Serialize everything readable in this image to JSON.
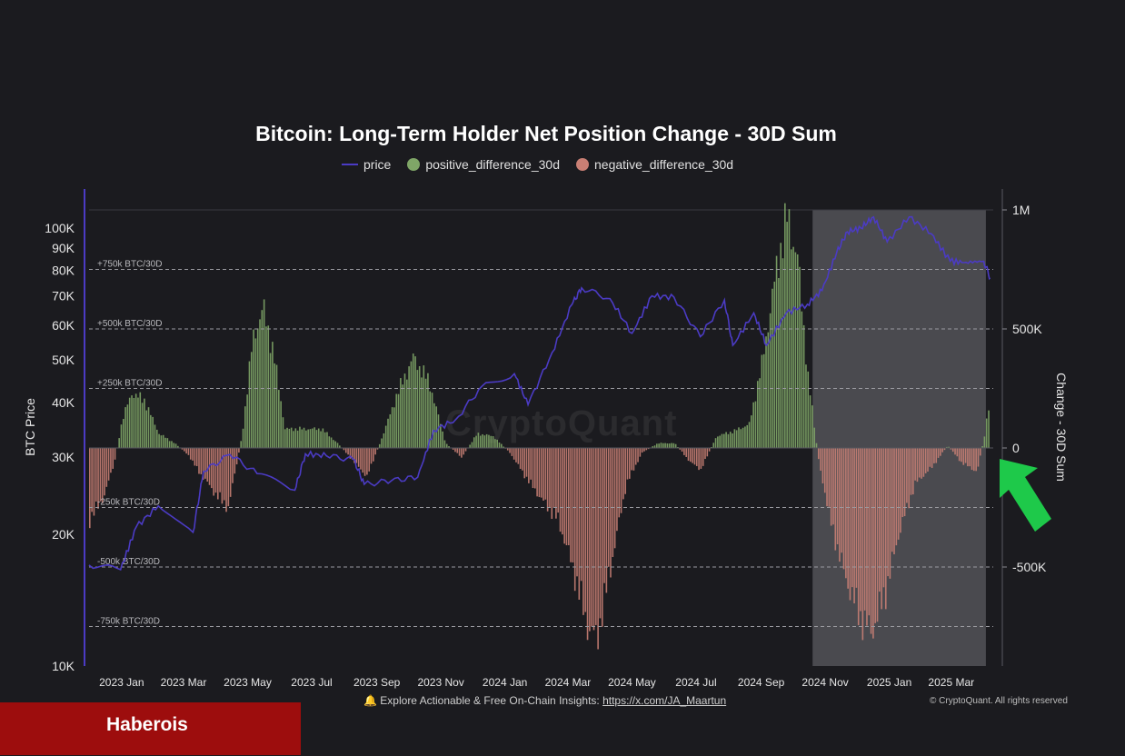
{
  "chart_data": {
    "type": "bar+line",
    "title": "Bitcoin: Long-Term Holder Net Position Change - 30D Sum",
    "legend": {
      "position": "top-center",
      "items": [
        {
          "name": "price",
          "color": "#4b3bc4",
          "shape": "line"
        },
        {
          "name": "positive_difference_30d",
          "color": "#7fa667",
          "shape": "dot"
        },
        {
          "name": "negative_difference_30d",
          "color": "#c97f74",
          "shape": "dot"
        }
      ]
    },
    "left_axis": {
      "label": "BTC Price",
      "scale": "log",
      "range": [
        10000,
        110000
      ],
      "ticks": [
        {
          "value": 10000,
          "label": "10K"
        },
        {
          "value": 20000,
          "label": "20K"
        },
        {
          "value": 30000,
          "label": "30K"
        },
        {
          "value": 40000,
          "label": "40K"
        },
        {
          "value": 50000,
          "label": "50K"
        },
        {
          "value": 60000,
          "label": "60K"
        },
        {
          "value": 70000,
          "label": "70K"
        },
        {
          "value": 80000,
          "label": "80K"
        },
        {
          "value": 90000,
          "label": "90K"
        },
        {
          "value": 100000,
          "label": "100K"
        }
      ]
    },
    "right_axis": {
      "label": "Change - 30D Sum",
      "range": [
        -900000,
        1000000
      ],
      "ticks": [
        {
          "value": 1000000,
          "label": "1M"
        },
        {
          "value": 500000,
          "label": "500K"
        },
        {
          "value": 0,
          "label": "0"
        },
        {
          "value": -500000,
          "label": "-500K"
        }
      ]
    },
    "x_axis": {
      "start": "2022-12-01",
      "end": "2025-04-10",
      "ticks": [
        {
          "date": "2023-01-01",
          "label": "2023 Jan"
        },
        {
          "date": "2023-03-01",
          "label": "2023 Mar"
        },
        {
          "date": "2023-05-01",
          "label": "2023 May"
        },
        {
          "date": "2023-07-01",
          "label": "2023 Jul"
        },
        {
          "date": "2023-09-01",
          "label": "2023 Sep"
        },
        {
          "date": "2023-11-01",
          "label": "2023 Nov"
        },
        {
          "date": "2024-01-01",
          "label": "2024 Jan"
        },
        {
          "date": "2024-03-01",
          "label": "2024 Mar"
        },
        {
          "date": "2024-05-01",
          "label": "2024 May"
        },
        {
          "date": "2024-07-01",
          "label": "2024 Jul"
        },
        {
          "date": "2024-09-01",
          "label": "2024 Sep"
        },
        {
          "date": "2024-11-01",
          "label": "2024 Nov"
        },
        {
          "date": "2025-01-01",
          "label": "2025 Jan"
        },
        {
          "date": "2025-03-01",
          "label": "2025 Mar"
        }
      ]
    },
    "reference_lines": [
      {
        "value": 750000,
        "label": "+750k BTC/30D"
      },
      {
        "value": 500000,
        "label": "+500k BTC/30D"
      },
      {
        "value": 250000,
        "label": "+250k BTC/30D"
      },
      {
        "value": -250000,
        "label": "-250k BTC/30D"
      },
      {
        "value": -500000,
        "label": "-500k BTC/30D"
      },
      {
        "value": -750000,
        "label": "-750k BTC/30D"
      }
    ],
    "highlight_region": {
      "start": "2024-10-20",
      "end": "2025-04-03",
      "color": "#4a4a4f"
    },
    "net_change_series": [
      {
        "date": "2022-12-01",
        "value": -300000
      },
      {
        "date": "2022-12-15",
        "value": -200000
      },
      {
        "date": "2022-12-25",
        "value": -50000
      },
      {
        "date": "2023-01-01",
        "value": 120000
      },
      {
        "date": "2023-01-10",
        "value": 230000
      },
      {
        "date": "2023-01-22",
        "value": 200000
      },
      {
        "date": "2023-02-05",
        "value": 60000
      },
      {
        "date": "2023-02-20",
        "value": 20000
      },
      {
        "date": "2023-03-05",
        "value": -30000
      },
      {
        "date": "2023-03-15",
        "value": -100000
      },
      {
        "date": "2023-04-01",
        "value": -200000
      },
      {
        "date": "2023-04-12",
        "value": -250000
      },
      {
        "date": "2023-04-25",
        "value": 50000
      },
      {
        "date": "2023-05-05",
        "value": 450000
      },
      {
        "date": "2023-05-15",
        "value": 590000
      },
      {
        "date": "2023-05-25",
        "value": 400000
      },
      {
        "date": "2023-06-05",
        "value": 80000
      },
      {
        "date": "2023-06-20",
        "value": 80000
      },
      {
        "date": "2023-07-10",
        "value": 80000
      },
      {
        "date": "2023-07-25",
        "value": 20000
      },
      {
        "date": "2023-08-10",
        "value": -60000
      },
      {
        "date": "2023-08-22",
        "value": -120000
      },
      {
        "date": "2023-09-05",
        "value": 40000
      },
      {
        "date": "2023-09-20",
        "value": 230000
      },
      {
        "date": "2023-10-05",
        "value": 380000
      },
      {
        "date": "2023-10-20",
        "value": 280000
      },
      {
        "date": "2023-11-05",
        "value": 20000
      },
      {
        "date": "2023-11-20",
        "value": -40000
      },
      {
        "date": "2023-12-05",
        "value": 60000
      },
      {
        "date": "2023-12-20",
        "value": 50000
      },
      {
        "date": "2024-01-05",
        "value": -20000
      },
      {
        "date": "2024-01-20",
        "value": -120000
      },
      {
        "date": "2024-02-05",
        "value": -220000
      },
      {
        "date": "2024-02-20",
        "value": -300000
      },
      {
        "date": "2024-03-05",
        "value": -500000
      },
      {
        "date": "2024-03-20",
        "value": -760000
      },
      {
        "date": "2024-03-28",
        "value": -800000
      },
      {
        "date": "2024-04-10",
        "value": -500000
      },
      {
        "date": "2024-04-25",
        "value": -150000
      },
      {
        "date": "2024-05-10",
        "value": -20000
      },
      {
        "date": "2024-05-25",
        "value": 20000
      },
      {
        "date": "2024-06-10",
        "value": 20000
      },
      {
        "date": "2024-06-25",
        "value": -60000
      },
      {
        "date": "2024-07-05",
        "value": -90000
      },
      {
        "date": "2024-07-20",
        "value": 50000
      },
      {
        "date": "2024-08-05",
        "value": 70000
      },
      {
        "date": "2024-08-20",
        "value": 100000
      },
      {
        "date": "2024-09-01",
        "value": 350000
      },
      {
        "date": "2024-09-15",
        "value": 750000
      },
      {
        "date": "2024-09-25",
        "value": 970000
      },
      {
        "date": "2024-10-05",
        "value": 800000
      },
      {
        "date": "2024-10-15",
        "value": 300000
      },
      {
        "date": "2024-10-25",
        "value": -50000
      },
      {
        "date": "2024-11-05",
        "value": -300000
      },
      {
        "date": "2024-11-20",
        "value": -550000
      },
      {
        "date": "2024-12-05",
        "value": -720000
      },
      {
        "date": "2024-12-15",
        "value": -770000
      },
      {
        "date": "2024-12-28",
        "value": -600000
      },
      {
        "date": "2025-01-10",
        "value": -350000
      },
      {
        "date": "2025-01-25",
        "value": -150000
      },
      {
        "date": "2025-02-10",
        "value": -80000
      },
      {
        "date": "2025-02-25",
        "value": 10000
      },
      {
        "date": "2025-03-10",
        "value": -60000
      },
      {
        "date": "2025-03-25",
        "value": -100000
      },
      {
        "date": "2025-04-01",
        "value": 50000
      },
      {
        "date": "2025-04-06",
        "value": 200000
      }
    ],
    "price_series": [
      {
        "date": "2022-12-01",
        "value": 17000
      },
      {
        "date": "2022-12-31",
        "value": 16600
      },
      {
        "date": "2023-01-15",
        "value": 20800
      },
      {
        "date": "2023-02-05",
        "value": 23200
      },
      {
        "date": "2023-03-10",
        "value": 20200
      },
      {
        "date": "2023-03-20",
        "value": 27800
      },
      {
        "date": "2023-04-14",
        "value": 30400
      },
      {
        "date": "2023-05-10",
        "value": 27500
      },
      {
        "date": "2023-06-15",
        "value": 25200
      },
      {
        "date": "2023-06-25",
        "value": 30500
      },
      {
        "date": "2023-07-15",
        "value": 30200
      },
      {
        "date": "2023-08-10",
        "value": 29600
      },
      {
        "date": "2023-08-20",
        "value": 26000
      },
      {
        "date": "2023-09-15",
        "value": 26500
      },
      {
        "date": "2023-10-10",
        "value": 27000
      },
      {
        "date": "2023-10-25",
        "value": 34500
      },
      {
        "date": "2023-11-15",
        "value": 36500
      },
      {
        "date": "2023-12-10",
        "value": 43500
      },
      {
        "date": "2024-01-10",
        "value": 46500
      },
      {
        "date": "2024-01-23",
        "value": 39500
      },
      {
        "date": "2024-02-15",
        "value": 52000
      },
      {
        "date": "2024-03-05",
        "value": 67000
      },
      {
        "date": "2024-03-14",
        "value": 73000
      },
      {
        "date": "2024-04-10",
        "value": 69000
      },
      {
        "date": "2024-05-01",
        "value": 57500
      },
      {
        "date": "2024-05-20",
        "value": 70000
      },
      {
        "date": "2024-06-10",
        "value": 69500
      },
      {
        "date": "2024-07-05",
        "value": 56500
      },
      {
        "date": "2024-07-28",
        "value": 68500
      },
      {
        "date": "2024-08-05",
        "value": 54000
      },
      {
        "date": "2024-08-25",
        "value": 64000
      },
      {
        "date": "2024-09-06",
        "value": 54000
      },
      {
        "date": "2024-09-25",
        "value": 64000
      },
      {
        "date": "2024-10-15",
        "value": 67000
      },
      {
        "date": "2024-10-29",
        "value": 72000
      },
      {
        "date": "2024-11-12",
        "value": 88000
      },
      {
        "date": "2024-11-22",
        "value": 98000
      },
      {
        "date": "2024-12-05",
        "value": 100000
      },
      {
        "date": "2024-12-17",
        "value": 106000
      },
      {
        "date": "2024-12-30",
        "value": 93000
      },
      {
        "date": "2025-01-20",
        "value": 106000
      },
      {
        "date": "2025-02-10",
        "value": 97000
      },
      {
        "date": "2025-02-28",
        "value": 84000
      },
      {
        "date": "2025-03-15",
        "value": 83500
      },
      {
        "date": "2025-04-01",
        "value": 84000
      },
      {
        "date": "2025-04-07",
        "value": 77000
      }
    ]
  },
  "watermark": "CryptoQuant",
  "footer": {
    "bell_icon": "🔔",
    "note_text": "Explore Actionable & Free On-Chain Insights: ",
    "link_text": "https://x.com/JA_Maartun",
    "copyright": "© CryptoQuant. All rights reserved"
  },
  "brand": {
    "label": "Haberois",
    "background": "#9d0d0d"
  },
  "annotation": {
    "icon": "green-arrow-icon",
    "color": "#1ec94a"
  }
}
